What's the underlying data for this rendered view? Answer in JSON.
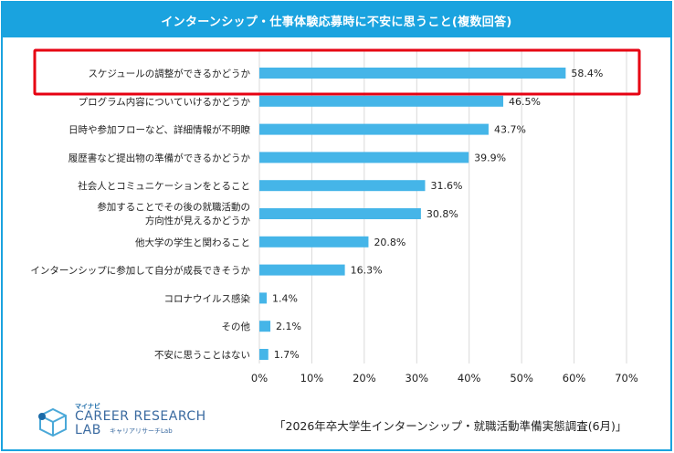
{
  "chart_data": {
    "type": "bar",
    "orientation": "horizontal",
    "title": "インターンシップ・仕事体験応募時に不安に思うこと(複数回答)",
    "categories": [
      "スケジュールの調整ができるかどうか",
      "プログラム内容についていけるかどうか",
      "日時や参加フローなど、詳細情報が不明瞭",
      "履歴書など提出物の準備ができるかどうか",
      "社会人とコミュニケーションをとること",
      "参加することでその後の就職活動の\n方向性が見えるかどうか",
      "他大学の学生と関わること",
      "インターンシップに参加して自分が成長できそうか",
      "コロナウイルス感染",
      "その他",
      "不安に思うことはない"
    ],
    "values": [
      58.4,
      46.5,
      43.7,
      39.9,
      31.6,
      30.8,
      20.8,
      16.3,
      1.4,
      2.1,
      1.7
    ],
    "value_labels": [
      "58.4%",
      "46.5%",
      "43.7%",
      "39.9%",
      "31.6%",
      "30.8%",
      "20.8%",
      "16.3%",
      "1.4%",
      "2.1%",
      "1.7%"
    ],
    "x_ticks": [
      "0%",
      "10%",
      "20%",
      "30%",
      "40%",
      "50%",
      "60%",
      "70%"
    ],
    "xlim": [
      0,
      70
    ],
    "grid": true,
    "highlighted_category_index": 0,
    "bar_color": "#45b5e8",
    "highlight_color": "#e60012"
  },
  "logo": {
    "small": "マイナビ",
    "line1": "CAREER RESEARCH",
    "line2": "LAB",
    "sub": "キャリアリサーチLab"
  },
  "source": "「2026年卒大学生インターンシップ・就職活動準備実態調査(6月)」"
}
